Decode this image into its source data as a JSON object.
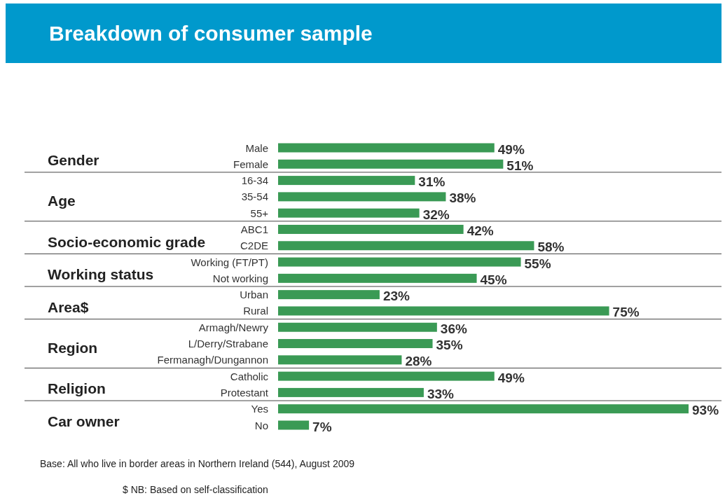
{
  "chart_data": {
    "type": "bar",
    "orientation": "horizontal",
    "title": "Breakdown of consumer sample",
    "categories": [
      "Male",
      "Female",
      "16-34",
      "35-54",
      "55+",
      "ABC1",
      "C2DE",
      "Working (FT/PT)",
      "Not working",
      "Urban",
      "Rural",
      "Armagh/Newry",
      "L/Derry/Strabane",
      "Fermanagh/Dungannon",
      "Catholic",
      "Protestant",
      "Yes",
      "No"
    ],
    "values": [
      49,
      51,
      31,
      38,
      32,
      42,
      58,
      55,
      45,
      23,
      75,
      36,
      35,
      28,
      49,
      33,
      93,
      7
    ],
    "value_labels": [
      "49%",
      "51%",
      "31%",
      "38%",
      "32%",
      "42%",
      "58%",
      "55%",
      "45%",
      "23%",
      "75%",
      "36%",
      "35%",
      "28%",
      "49%",
      "33%",
      "93%",
      "7%"
    ],
    "color": "#3a9a55",
    "annotations": [
      "Gender",
      "Age",
      "Socio-economic grade",
      "Working status",
      "Area$",
      "Region",
      "Religion",
      "Car owner",
      "Base: All who live in border areas in Northern Ireland (544), August 2009",
      "$ NB: Based on self-classification"
    ]
  }
}
